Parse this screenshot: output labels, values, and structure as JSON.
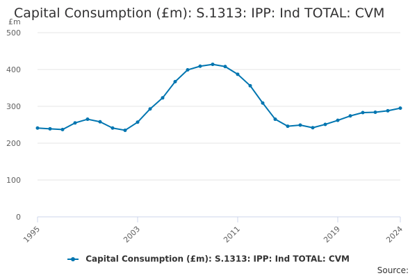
{
  "chart_data": {
    "type": "line",
    "title": "Capital Consumption (£m): S.1313: IPP: Ind TOTAL: CVM",
    "ylabel": "£m",
    "xlabel": "",
    "ylim": [
      0,
      500
    ],
    "yticks": [
      0,
      100,
      200,
      300,
      400,
      500
    ],
    "xlim": [
      1995,
      2024
    ],
    "xticks": [
      1995,
      2003,
      2011,
      2019,
      2024
    ],
    "grid": true,
    "legend_position": "bottom",
    "series": [
      {
        "name": "Capital Consumption (£m): S.1313: IPP: Ind TOTAL: CVM",
        "color": "#0075b0",
        "x": [
          1995,
          1996,
          1997,
          1998,
          1999,
          2000,
          2001,
          2002,
          2003,
          2004,
          2005,
          2006,
          2007,
          2008,
          2009,
          2010,
          2011,
          2012,
          2013,
          2014,
          2015,
          2016,
          2017,
          2018,
          2019,
          2020,
          2021,
          2022,
          2023,
          2024
        ],
        "values": [
          241,
          239,
          237,
          255,
          265,
          258,
          241,
          235,
          257,
          293,
          323,
          367,
          399,
          409,
          414,
          408,
          387,
          356,
          309,
          265,
          246,
          249,
          242,
          251,
          262,
          274,
          283,
          284,
          288,
          295
        ]
      }
    ]
  },
  "source_label": "Source:"
}
